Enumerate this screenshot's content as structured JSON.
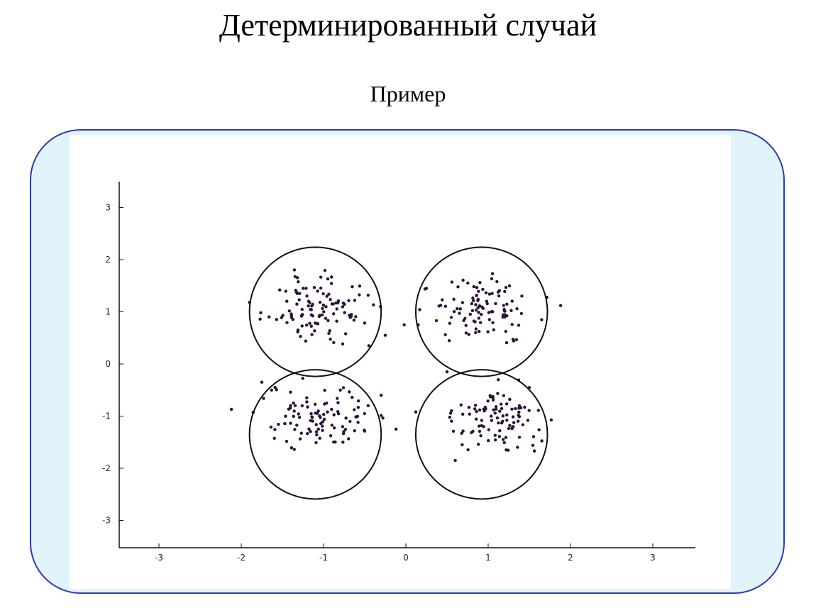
{
  "header": {
    "title": "Детерминированный случай",
    "subtitle": "Пример"
  },
  "chart_data": {
    "type": "scatter",
    "title": "",
    "xlabel": "",
    "ylabel": "",
    "xlim": [
      -3.5,
      3.5
    ],
    "ylim": [
      -3.5,
      3.5
    ],
    "xticks": [
      -3,
      -2,
      -1,
      0,
      1,
      2,
      3
    ],
    "yticks": [
      3,
      2,
      1,
      0,
      -1,
      -2,
      -3
    ],
    "grid": false,
    "marker_color": "#2a1238",
    "circle_color": "#111111",
    "clusters": [
      {
        "center": [
          -1.05,
          1.05
        ],
        "radius": 0.82,
        "spread": 0.32,
        "count": 110
      },
      {
        "center": [
          0.95,
          1.05
        ],
        "radius": 0.82,
        "spread": 0.32,
        "count": 100
      },
      {
        "center": [
          -1.05,
          -1.05
        ],
        "radius": 0.82,
        "spread": 0.34,
        "count": 100
      },
      {
        "center": [
          1.05,
          -1.05
        ],
        "radius": 0.82,
        "spread": 0.3,
        "count": 100
      }
    ],
    "circles": [
      {
        "cx": -1.1,
        "cy": 1.0,
        "r": 0.8
      },
      {
        "cx": 0.92,
        "cy": 1.0,
        "r": 0.8
      },
      {
        "cx": -1.1,
        "cy": -1.35,
        "r": 0.8
      },
      {
        "cx": 0.92,
        "cy": -1.35,
        "r": 0.8
      }
    ],
    "outliers": [
      [
        -2.12,
        -0.87
      ],
      [
        -1.9,
        1.18
      ],
      [
        -0.25,
        0.55
      ],
      [
        -0.12,
        -1.25
      ],
      [
        -0.02,
        0.75
      ],
      [
        0.12,
        -0.92
      ],
      [
        0.15,
        0.75
      ],
      [
        0.25,
        1.45
      ],
      [
        0.5,
        -0.15
      ],
      [
        0.6,
        -1.85
      ],
      [
        1.88,
        1.12
      ],
      [
        -0.3,
        -0.6
      ],
      [
        -1.75,
        -0.35
      ],
      [
        1.65,
        0.85
      ],
      [
        -0.45,
        0.35
      ]
    ]
  }
}
